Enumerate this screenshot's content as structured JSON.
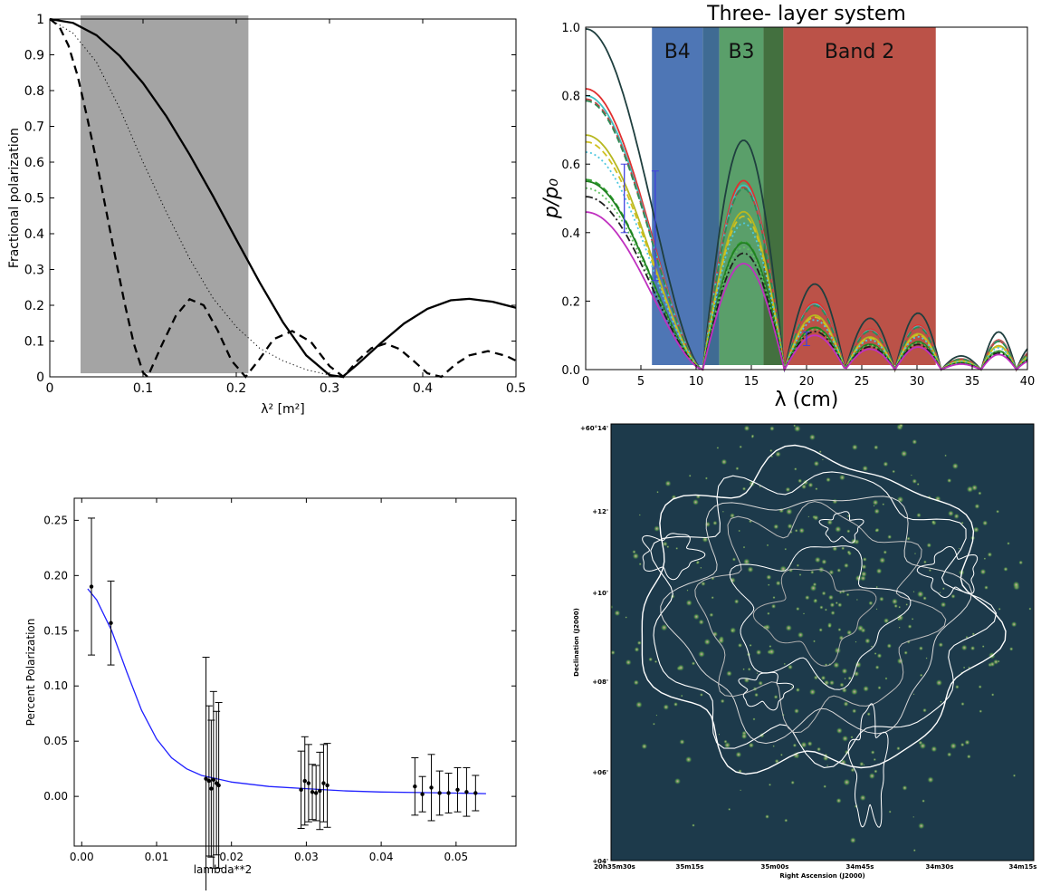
{
  "chart_data": [
    {
      "type": "line",
      "xlabel": "λ² [m²]",
      "ylabel": "Fractional polarization",
      "xlim": [
        0,
        0.5
      ],
      "ylim": [
        0,
        1
      ],
      "xticks": [
        "0",
        "0.1",
        "0.2",
        "0.3",
        "0.4",
        "0.5"
      ],
      "yticks": [
        "0",
        "0.1",
        "0.2",
        "0.3",
        "0.4",
        "0.5",
        "0.6",
        "0.7",
        "0.8",
        "0.9",
        "1"
      ],
      "shaded_region": {
        "x": [
          0.033,
          0.213
        ],
        "y": [
          0.01,
          1.01
        ],
        "color": "#a4a4a4"
      },
      "series": [
        {
          "style": "solid",
          "x": [
            0,
            0.025,
            0.05,
            0.075,
            0.1,
            0.125,
            0.15,
            0.175,
            0.2,
            0.225,
            0.25,
            0.275,
            0.3,
            0.314,
            0.33,
            0.355,
            0.38,
            0.405,
            0.43,
            0.45,
            0.475,
            0.5
          ],
          "y": [
            1,
            0.989,
            0.955,
            0.897,
            0.821,
            0.728,
            0.621,
            0.505,
            0.384,
            0.264,
            0.153,
            0.06,
            0.005,
            0.0,
            0.035,
            0.094,
            0.149,
            0.19,
            0.214,
            0.218,
            0.21,
            0.193
          ]
        },
        {
          "style": "dashed",
          "x": [
            0,
            0.01,
            0.02,
            0.03,
            0.04,
            0.05,
            0.06,
            0.07,
            0.08,
            0.09,
            0.1,
            0.105,
            0.12,
            0.135,
            0.15,
            0.165,
            0.18,
            0.195,
            0.21,
            0.225,
            0.24,
            0.26,
            0.28,
            0.3,
            0.315,
            0.33,
            0.345,
            0.36,
            0.375,
            0.39,
            0.405,
            0.42,
            0.435,
            0.45,
            0.47,
            0.49,
            0.5
          ],
          "y": [
            1,
            0.98,
            0.926,
            0.84,
            0.726,
            0.604,
            0.471,
            0.338,
            0.209,
            0.094,
            0.012,
            0.0,
            0.088,
            0.17,
            0.217,
            0.2,
            0.13,
            0.045,
            0.0,
            0.05,
            0.105,
            0.128,
            0.098,
            0.03,
            0.0,
            0.045,
            0.08,
            0.093,
            0.078,
            0.045,
            0.01,
            0.0,
            0.035,
            0.06,
            0.072,
            0.058,
            0.045
          ]
        },
        {
          "style": "dotted",
          "x": [
            0,
            0.025,
            0.05,
            0.075,
            0.1,
            0.125,
            0.15,
            0.175,
            0.2,
            0.225,
            0.25,
            0.275,
            0.3,
            0.314
          ],
          "y": [
            1,
            0.96,
            0.88,
            0.75,
            0.6,
            0.46,
            0.33,
            0.22,
            0.14,
            0.08,
            0.045,
            0.02,
            0.005,
            0.0
          ]
        }
      ]
    },
    {
      "type": "line",
      "title": "Three- layer system",
      "xlabel": "λ (cm)",
      "ylabel": "p/p₀",
      "xlim": [
        0,
        40
      ],
      "ylim": [
        0,
        1.0
      ],
      "xticks": [
        "0",
        "5",
        "10",
        "15",
        "20",
        "25",
        "30",
        "35",
        "40"
      ],
      "yticks": [
        "0.0",
        "0.2",
        "0.4",
        "0.6",
        "0.8",
        "1.0"
      ],
      "bands": [
        {
          "label": "B4",
          "x": [
            6.0,
            10.6
          ],
          "color": "#4e76b5"
        },
        {
          "label": "",
          "x": [
            10.6,
            12.1
          ],
          "color": "#3f6b93"
        },
        {
          "label": "B3",
          "x": [
            12.1,
            16.1
          ],
          "color": "#5a9f6a"
        },
        {
          "label": "",
          "x": [
            16.1,
            17.9
          ],
          "color": "#43703f"
        },
        {
          "label": "Band 2",
          "x": [
            17.9,
            31.7
          ],
          "color": "#bb5248"
        }
      ],
      "series": [
        {
          "color": "#1f3f3f",
          "p0": 0.995,
          "style": "solid"
        },
        {
          "color": "#e03030",
          "p0": 0.82,
          "style": "solid"
        },
        {
          "color": "#40c0c0",
          "p0": 0.8,
          "style": "solid"
        },
        {
          "color": "#c04040",
          "p0": 0.79,
          "style": "dashed"
        },
        {
          "color": "#2e8b57",
          "p0": 0.785,
          "style": "dashed"
        },
        {
          "color": "#b8b820",
          "p0": 0.685,
          "style": "solid"
        },
        {
          "color": "#d0c020",
          "p0": 0.665,
          "style": "dashed"
        },
        {
          "color": "#50c8e0",
          "p0": 0.635,
          "style": "dotted"
        },
        {
          "color": "#30a030",
          "p0": 0.555,
          "style": "dashed"
        },
        {
          "color": "#208020",
          "p0": 0.55,
          "style": "solid"
        },
        {
          "color": "#60c060",
          "p0": 0.53,
          "style": "dotted"
        },
        {
          "color": "#202020",
          "p0": 0.505,
          "style": "dashdot"
        },
        {
          "color": "#c030c0",
          "p0": 0.46,
          "style": "solid"
        }
      ],
      "errorbars": [
        {
          "x": 3.5,
          "y": 0.5,
          "err": 0.1
        },
        {
          "x": 6.3,
          "y": 0.42,
          "err": 0.16
        },
        {
          "x": 20.0,
          "y": 0.09,
          "err": 0.02
        }
      ]
    },
    {
      "type": "scatter",
      "xlabel": "lambda**2",
      "ylabel": "Percent Polarization",
      "xlim": [
        -0.001,
        0.058
      ],
      "ylim": [
        -0.045,
        0.27
      ],
      "xticks": [
        "0.00",
        "0.01",
        "0.02",
        "0.03",
        "0.04",
        "0.05"
      ],
      "yticks": [
        "0.00",
        "0.05",
        "0.10",
        "0.15",
        "0.20",
        "0.25"
      ],
      "points": {
        "x": [
          0.0013,
          0.0039,
          0.0166,
          0.017,
          0.0173,
          0.0176,
          0.018,
          0.0183,
          0.0293,
          0.0298,
          0.0303,
          0.0308,
          0.0313,
          0.0318,
          0.0323,
          0.0328,
          0.0445,
          0.0455,
          0.0467,
          0.0478,
          0.049,
          0.0502,
          0.0514,
          0.0526
        ],
        "y": [
          0.19,
          0.157,
          0.016,
          0.014,
          0.007,
          0.015,
          0.012,
          0.01,
          0.006,
          0.014,
          0.012,
          0.004,
          0.003,
          0.005,
          0.012,
          0.01,
          0.009,
          0.002,
          0.008,
          0.003,
          0.003,
          0.006,
          0.004,
          0.003
        ],
        "err": [
          0.062,
          0.038,
          0.11,
          0.068,
          0.062,
          0.08,
          0.065,
          0.075,
          0.035,
          0.04,
          0.035,
          0.025,
          0.025,
          0.035,
          0.035,
          0.038,
          0.026,
          0.016,
          0.03,
          0.02,
          0.018,
          0.02,
          0.022,
          0.016
        ]
      },
      "fit": {
        "color": "#2020ff",
        "x": [
          0.0008,
          0.002,
          0.004,
          0.006,
          0.008,
          0.01,
          0.012,
          0.014,
          0.016,
          0.018,
          0.02,
          0.025,
          0.03,
          0.035,
          0.04,
          0.045,
          0.05,
          0.054
        ],
        "y": [
          0.188,
          0.178,
          0.15,
          0.113,
          0.078,
          0.052,
          0.035,
          0.025,
          0.019,
          0.016,
          0.013,
          0.009,
          0.007,
          0.005,
          0.004,
          0.0035,
          0.003,
          0.0025
        ]
      }
    },
    {
      "type": "heatmap",
      "xlabel": "Right Ascension (J2000)",
      "ylabel": "Declination (J2000)",
      "xticks": [
        "20h35m30s",
        "35m15s",
        "35m00s",
        "34m45s",
        "34m30s",
        "34m15s"
      ],
      "yticks": [
        "+04'",
        "+06'",
        "+08'",
        "+10'",
        "+12'",
        "+60°14'"
      ]
    }
  ]
}
